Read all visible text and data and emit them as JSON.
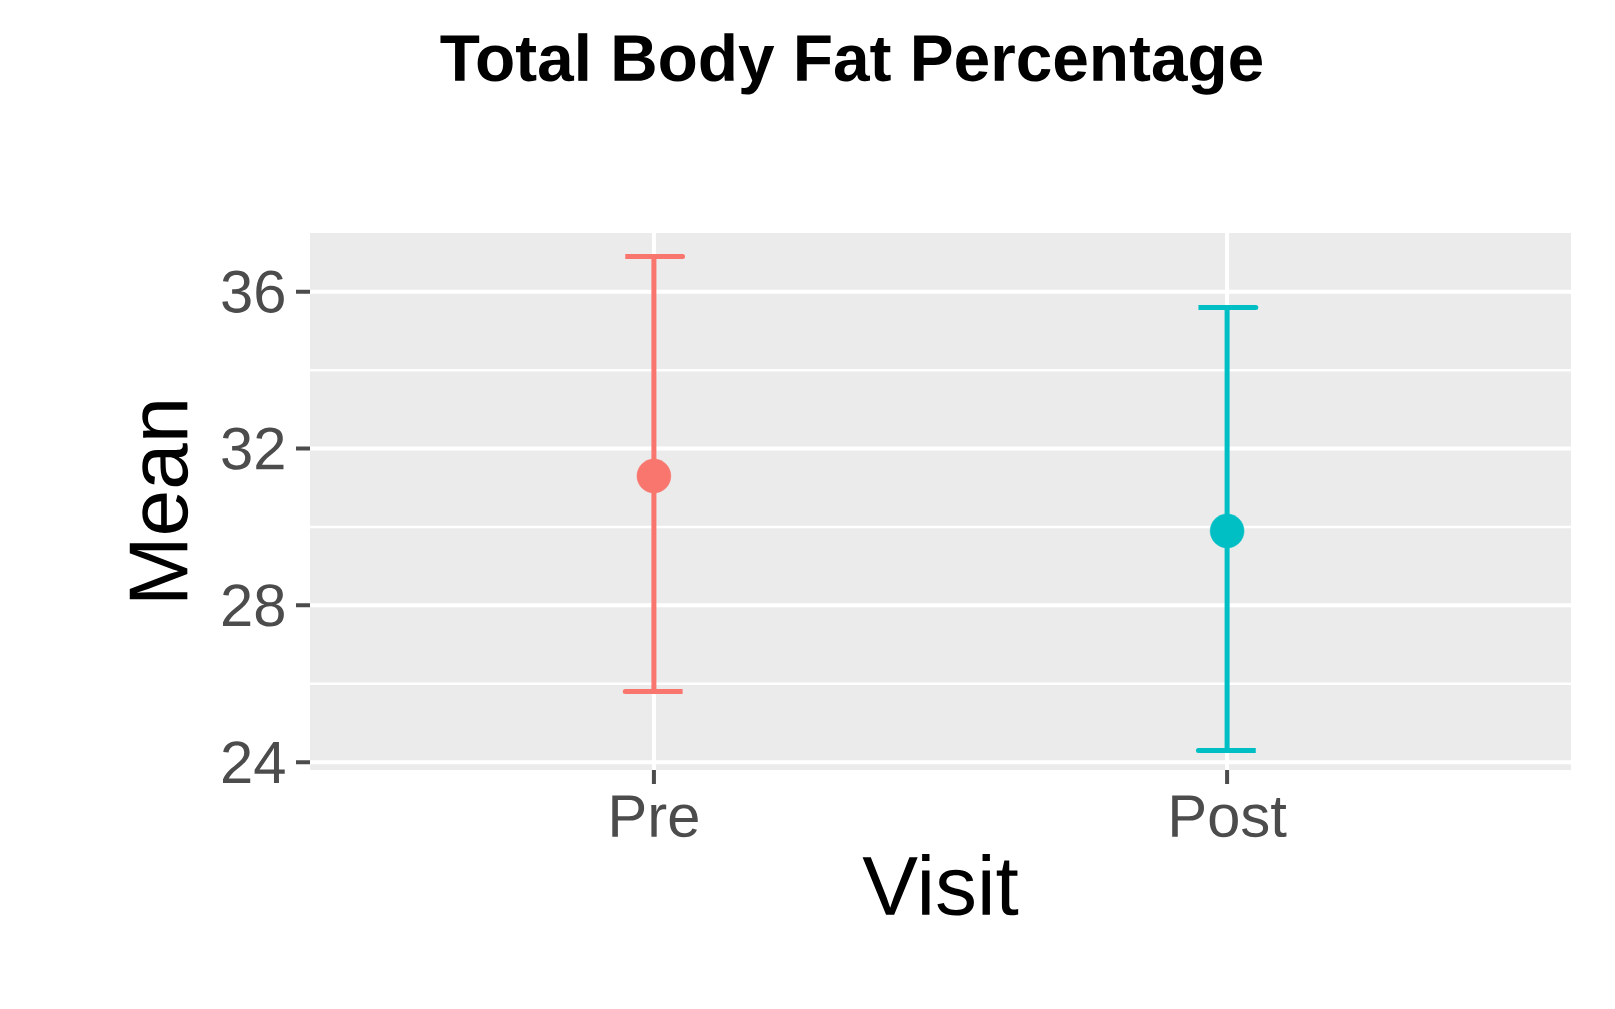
{
  "chart_data": {
    "type": "scatter",
    "title": "Total Body Fat Percentage",
    "xlabel": "Visit",
    "ylabel": "Mean",
    "categories": [
      "Pre",
      "Post"
    ],
    "values": [
      31.3,
      29.9
    ],
    "errors": [
      [
        25.8,
        36.9
      ],
      [
        24.3,
        35.6
      ]
    ],
    "colors": [
      "#f8766d",
      "#00bfc4"
    ],
    "marker": "circle",
    "ylim": [
      23.8,
      37.5
    ],
    "yticks": [
      24,
      28,
      32,
      36
    ],
    "grid": true
  }
}
